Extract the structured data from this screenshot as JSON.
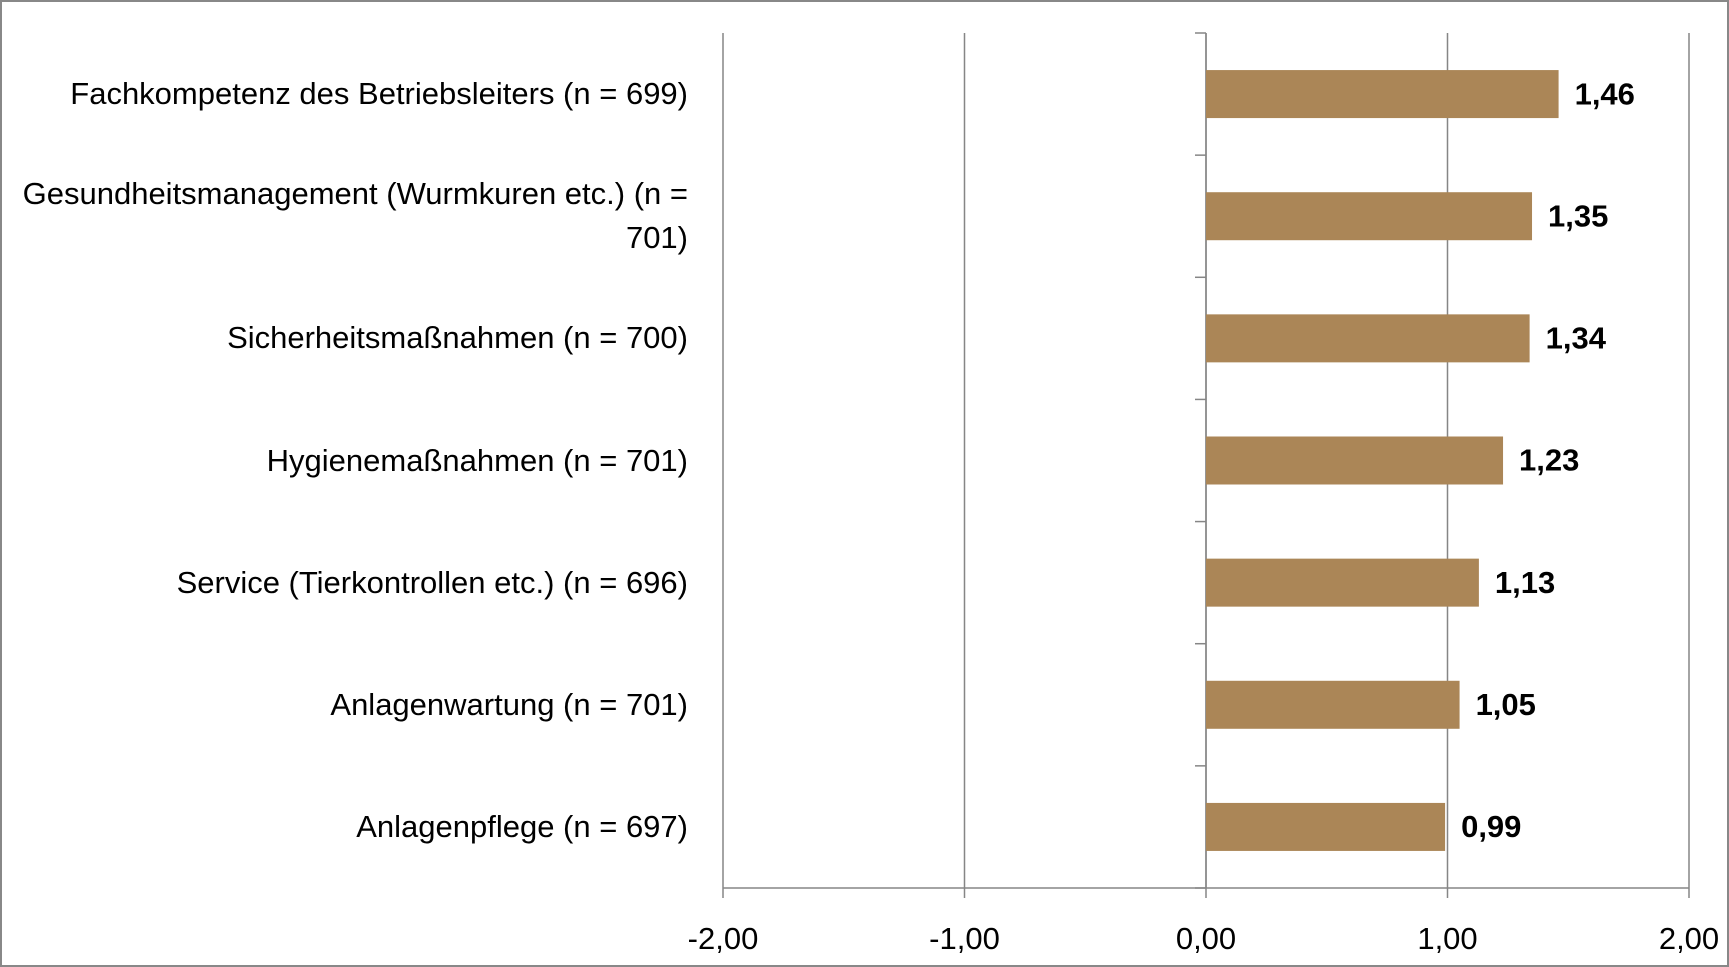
{
  "chart_data": {
    "type": "bar",
    "orientation": "horizontal",
    "categories": [
      "Fachkompetenz des Betriebsleiters (n = 699)",
      "Gesundheitsmanagement (Wurmkuren etc.) (n = 701)",
      "Sicherheitsmaßnahmen (n = 700)",
      "Hygienemaßnahmen (n = 701)",
      "Service (Tierkontrollen etc.) (n = 696)",
      "Anlagenwartung (n = 701)",
      "Anlagenpflege (n = 697)"
    ],
    "values": [
      1.46,
      1.35,
      1.34,
      1.23,
      1.13,
      1.05,
      0.99
    ],
    "value_labels": [
      "1,46",
      "1,35",
      "1,34",
      "1,23",
      "1,13",
      "1,05",
      "0,99"
    ],
    "color": "#ab8657",
    "xlim": [
      -2,
      2
    ],
    "xticks": [
      {
        "value": -2,
        "label": "-2,00"
      },
      {
        "value": -1,
        "label": "-1,00"
      },
      {
        "value": 0,
        "label": "0,00"
      },
      {
        "value": 1,
        "label": "1,00"
      },
      {
        "value": 2,
        "label": "2,00"
      }
    ],
    "grid": true
  }
}
